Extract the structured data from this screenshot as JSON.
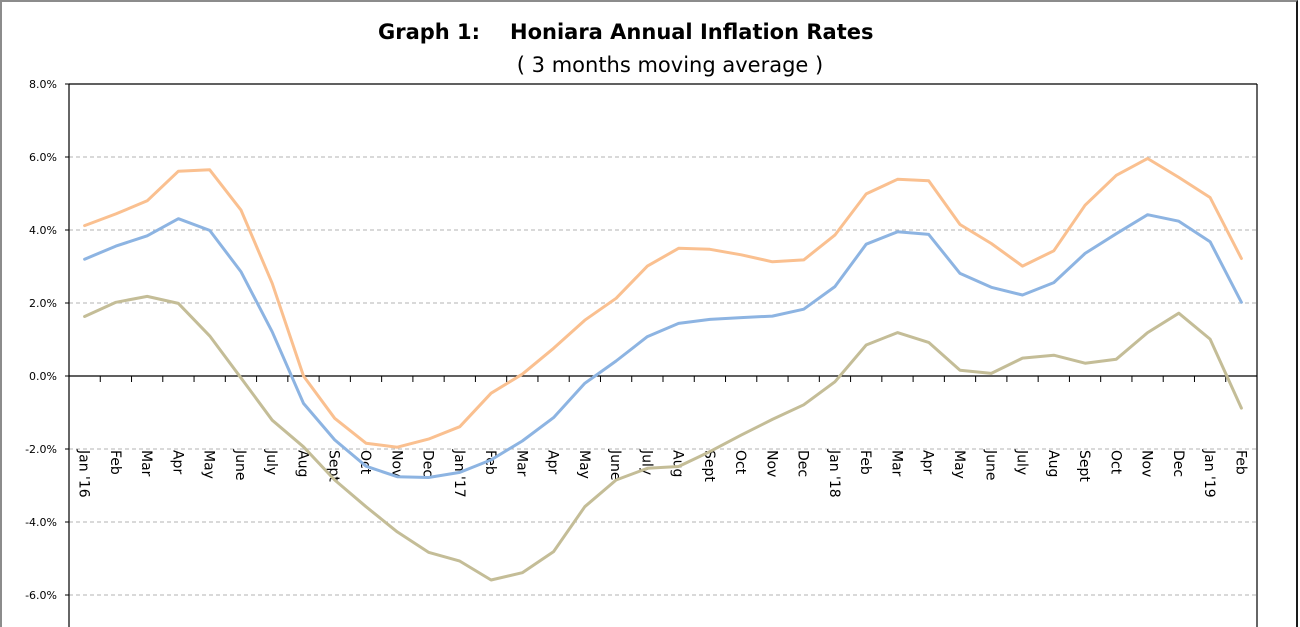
{
  "chart_data": {
    "type": "line",
    "title": "Graph 1:",
    "title_text": "Honiara Annual Inflation Rates",
    "subtitle": "( 3 months moving average )",
    "xlabel": "",
    "ylabel": "",
    "ylim": [
      -7.0,
      8.0
    ],
    "yticks": [
      8.0,
      6.0,
      4.0,
      2.0,
      0.0,
      -2.0,
      -4.0,
      -6.0
    ],
    "ytick_labels": [
      "8.0%",
      "6.0%",
      "4.0%",
      "2.0%",
      "0.0%",
      "-2.0%",
      "-4.0%",
      "-6.0%"
    ],
    "grid": "horizontal dashed",
    "legend": "none",
    "categories": [
      "Jan '16",
      "Feb",
      "Mar",
      "Apr",
      "May",
      "June",
      "July",
      "Aug",
      "Sept",
      "Oct",
      "Nov",
      "Dec",
      "Jan '17",
      "Feb",
      "Mar",
      "Apr",
      "May",
      "June",
      "July",
      "Aug",
      "Sept",
      "Oct",
      "Nov",
      "Dec",
      "Jan '18",
      "Feb",
      "Mar",
      "Apr",
      "May",
      "June",
      "July",
      "Aug",
      "Sept",
      "Oct",
      "Nov",
      "Dec",
      "Jan '19",
      "Feb"
    ],
    "series": [
      {
        "name": "upper series",
        "color": "#FAC090",
        "values": [
          4.12,
          4.44,
          4.8,
          5.61,
          5.65,
          4.55,
          2.54,
          0.0,
          -1.16,
          -1.84,
          -1.95,
          -1.73,
          -1.39,
          -0.47,
          0.05,
          0.76,
          1.53,
          2.13,
          3.01,
          3.5,
          3.47,
          3.32,
          3.13,
          3.18,
          3.86,
          4.99,
          5.39,
          5.35,
          4.15,
          3.63,
          3.01,
          3.43,
          4.68,
          5.5,
          5.96,
          5.44,
          4.89,
          3.22
        ]
      },
      {
        "name": "middle series",
        "color": "#8DB4E2",
        "values": [
          3.2,
          3.56,
          3.84,
          4.31,
          3.99,
          2.86,
          1.21,
          -0.75,
          -1.75,
          -2.47,
          -2.76,
          -2.78,
          -2.64,
          -2.3,
          -1.78,
          -1.14,
          -0.2,
          0.41,
          1.08,
          1.44,
          1.55,
          1.6,
          1.64,
          1.83,
          2.45,
          3.61,
          3.95,
          3.88,
          2.81,
          2.43,
          2.22,
          2.56,
          3.36,
          3.9,
          4.42,
          4.24,
          3.68,
          2.02
        ]
      },
      {
        "name": "lower series",
        "color": "#C4BD97",
        "values": [
          1.63,
          2.02,
          2.18,
          1.99,
          1.1,
          -0.05,
          -1.21,
          -1.94,
          -2.85,
          -3.58,
          -4.27,
          -4.83,
          -5.07,
          -5.59,
          -5.39,
          -4.81,
          -3.58,
          -2.85,
          -2.53,
          -2.48,
          -2.07,
          -1.62,
          -1.19,
          -0.79,
          -0.16,
          0.85,
          1.19,
          0.92,
          0.16,
          0.07,
          0.49,
          0.57,
          0.35,
          0.46,
          1.19,
          1.72,
          1.01,
          -0.88
        ]
      }
    ]
  }
}
